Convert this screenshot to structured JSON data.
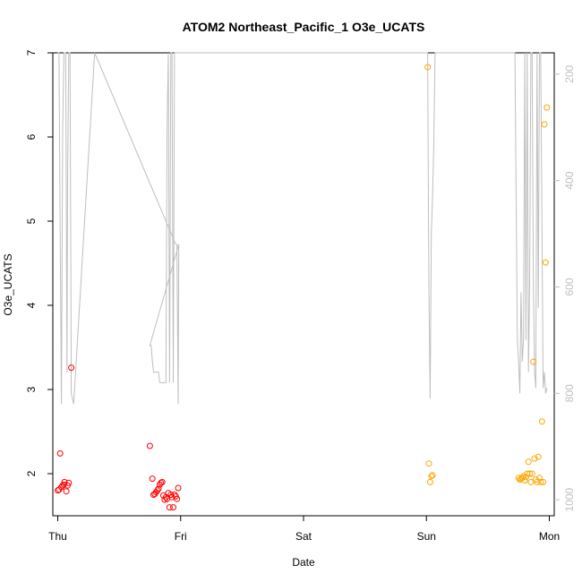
{
  "chart_data": {
    "type": "scatter",
    "title": "ATOM2 Northeast_Pacific_1 O3e_UCATS",
    "xlabel": "Date",
    "ylabel": "O3e_UCATS",
    "x_ticks": [
      {
        "label": "Thu",
        "value": 0
      },
      {
        "label": "Fri",
        "value": 1
      },
      {
        "label": "Sat",
        "value": 2
      },
      {
        "label": "Sun",
        "value": 3
      },
      {
        "label": "Mon",
        "value": 4
      }
    ],
    "y_ticks": [
      2,
      3,
      4,
      5,
      6,
      7
    ],
    "xlim": [
      -0.04,
      4.04
    ],
    "ylim": [
      1.5,
      7.0
    ],
    "y2_ticks": [
      200,
      400,
      600,
      800,
      1000
    ],
    "y2lim": [
      1030,
      160
    ],
    "grid": false,
    "colors": {
      "series_red": "#ff0000",
      "series_orange": "#ffa500",
      "pressure_line": "#bebebe",
      "axis": "#000000",
      "right_axis": "#bfbfbf"
    },
    "series": [
      {
        "color": "#ff0000",
        "points": [
          [
            0.0,
            1.8
          ],
          [
            0.01,
            1.81
          ],
          [
            0.02,
            2.24
          ],
          [
            0.03,
            1.84
          ],
          [
            0.04,
            1.86
          ],
          [
            0.05,
            1.87
          ],
          [
            0.055,
            1.9
          ],
          [
            0.07,
            1.79
          ],
          [
            0.08,
            1.86
          ],
          [
            0.09,
            1.89
          ],
          [
            0.11,
            3.26
          ],
          [
            0.75,
            2.33
          ],
          [
            0.77,
            1.94
          ],
          [
            0.78,
            1.75
          ],
          [
            0.79,
            1.76
          ],
          [
            0.8,
            1.78
          ],
          [
            0.81,
            1.8
          ],
          [
            0.82,
            1.82
          ],
          [
            0.83,
            1.87
          ],
          [
            0.84,
            1.89
          ],
          [
            0.85,
            1.9
          ],
          [
            0.86,
            1.74
          ],
          [
            0.87,
            1.69
          ],
          [
            0.88,
            1.72
          ],
          [
            0.89,
            1.7
          ],
          [
            0.9,
            1.77
          ],
          [
            0.91,
            1.6
          ],
          [
            0.92,
            1.75
          ],
          [
            0.93,
            1.72
          ],
          [
            0.94,
            1.6
          ],
          [
            0.95,
            1.75
          ],
          [
            0.96,
            1.73
          ],
          [
            0.97,
            1.7
          ],
          [
            0.98,
            1.83
          ]
        ]
      },
      {
        "color": "#ffa500",
        "points": [
          [
            3.01,
            6.83
          ],
          [
            3.02,
            2.12
          ],
          [
            3.03,
            1.9
          ],
          [
            3.04,
            1.97
          ],
          [
            3.05,
            1.98
          ],
          [
            3.75,
            1.95
          ],
          [
            3.76,
            1.93
          ],
          [
            3.77,
            1.94
          ],
          [
            3.78,
            1.95
          ],
          [
            3.79,
            1.97
          ],
          [
            3.8,
            1.92
          ],
          [
            3.81,
            1.96
          ],
          [
            3.82,
            2.0
          ],
          [
            3.83,
            2.14
          ],
          [
            3.84,
            2.0
          ],
          [
            3.85,
            1.9
          ],
          [
            3.86,
            2.0
          ],
          [
            3.87,
            3.33
          ],
          [
            3.88,
            2.18
          ],
          [
            3.89,
            1.93
          ],
          [
            3.9,
            1.9
          ],
          [
            3.91,
            2.2
          ],
          [
            3.92,
            1.95
          ],
          [
            3.93,
            1.9
          ],
          [
            3.94,
            2.62
          ],
          [
            3.95,
            1.9
          ],
          [
            3.96,
            6.15
          ],
          [
            3.97,
            4.51
          ],
          [
            3.98,
            6.35
          ]
        ]
      }
    ],
    "pressure_line": [
      [
        0.0,
        160
      ],
      [
        0.01,
        160
      ],
      [
        0.02,
        500
      ],
      [
        0.03,
        820
      ],
      [
        0.04,
        300
      ],
      [
        0.05,
        160
      ],
      [
        0.065,
        160
      ],
      [
        0.075,
        760
      ],
      [
        0.08,
        400
      ],
      [
        0.09,
        160
      ],
      [
        0.1,
        160
      ],
      [
        0.11,
        800
      ],
      [
        0.13,
        820
      ],
      [
        0.3,
        160
      ],
      [
        0.96,
        520
      ],
      [
        0.97,
        520
      ],
      [
        0.98,
        820
      ],
      [
        0.985,
        520
      ],
      [
        0.75,
        710
      ],
      [
        0.76,
        710
      ],
      [
        0.77,
        740
      ],
      [
        0.78,
        760
      ],
      [
        0.82,
        760
      ],
      [
        0.83,
        780
      ],
      [
        0.88,
        780
      ],
      [
        0.89,
        300
      ],
      [
        0.9,
        160
      ],
      [
        0.91,
        780
      ],
      [
        0.92,
        160
      ],
      [
        0.93,
        160
      ],
      [
        0.94,
        780
      ],
      [
        0.95,
        160
      ],
      [
        3.0,
        160
      ],
      [
        3.01,
        160
      ],
      [
        3.02,
        600
      ],
      [
        3.03,
        810
      ],
      [
        3.04,
        500
      ],
      [
        3.05,
        430
      ],
      [
        3.06,
        330
      ],
      [
        3.07,
        160
      ],
      [
        3.7,
        160
      ],
      [
        3.72,
        160
      ],
      [
        3.74,
        700
      ],
      [
        3.75,
        740
      ],
      [
        3.76,
        800
      ],
      [
        3.77,
        610
      ],
      [
        3.78,
        740
      ],
      [
        3.79,
        700
      ],
      [
        3.8,
        160
      ],
      [
        3.81,
        700
      ],
      [
        3.82,
        160
      ],
      [
        3.83,
        760
      ],
      [
        3.84,
        600
      ],
      [
        3.85,
        160
      ],
      [
        3.86,
        160
      ],
      [
        3.87,
        600
      ],
      [
        3.88,
        760
      ],
      [
        3.89,
        790
      ],
      [
        3.9,
        160
      ],
      [
        3.91,
        640
      ],
      [
        3.92,
        160
      ],
      [
        3.93,
        160
      ],
      [
        3.95,
        790
      ],
      [
        3.96,
        760
      ],
      [
        3.97,
        800
      ],
      [
        3.98,
        790
      ]
    ]
  }
}
